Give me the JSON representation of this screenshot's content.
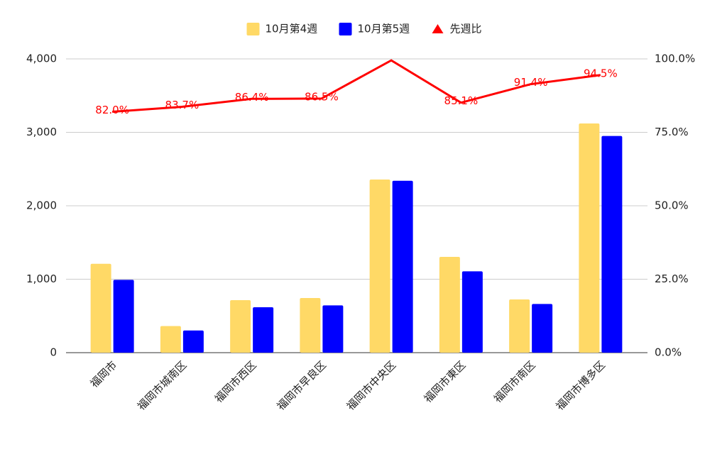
{
  "chart_data": {
    "type": "bar",
    "categories": [
      "福岡市",
      "福岡市城南区",
      "福岡市西区",
      "福岡市早良区",
      "福岡市中央区",
      "福岡市東区",
      "福岡市南区",
      "福岡市博多区"
    ],
    "series": [
      {
        "name": "10月第4週",
        "color": "#ffd966",
        "values": [
          1210,
          362,
          715,
          744,
          2357,
          1304,
          725,
          3121
        ]
      },
      {
        "name": "10月第5週",
        "color": "#0000ff",
        "values": [
          992,
          302,
          618,
          644,
          2340,
          1108,
          663,
          2950
        ]
      },
      {
        "name": "先週比",
        "color": "#ff0000",
        "type": "line",
        "axis": "y2",
        "values": [
          82.0,
          83.7,
          86.4,
          86.5,
          99.5,
          85.1,
          91.4,
          94.5
        ],
        "value_labels": [
          "82.0%",
          "83.7%",
          "86.4%",
          "86.5%",
          null,
          "85.1%",
          "91.4%",
          "94.5%"
        ]
      }
    ],
    "ylim": [
      0,
      4000
    ],
    "yticks": [
      0,
      {
        "value": 1000,
        "label": "1,000"
      },
      {
        "value": 2000,
        "label": "2,000"
      },
      {
        "value": 3000,
        "label": "3,000"
      },
      {
        "value": 4000,
        "label": "4,000"
      }
    ],
    "y2lim": [
      0,
      100
    ],
    "y2ticks": [
      {
        "value": 0,
        "label": "0.0%"
      },
      {
        "value": 25,
        "label": "25.0%"
      },
      {
        "value": 50,
        "label": "50.0%"
      },
      {
        "value": 75,
        "label": "75.0%"
      },
      {
        "value": 100,
        "label": "100.0%"
      }
    ],
    "grid": true,
    "legend": "top"
  }
}
